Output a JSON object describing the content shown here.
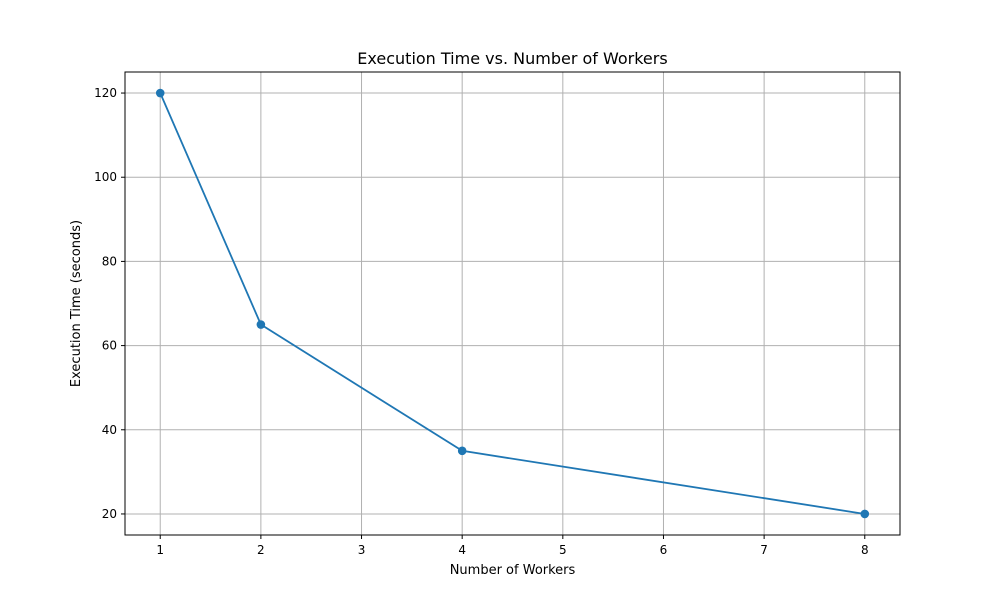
{
  "chart_data": {
    "type": "line",
    "title": "Execution Time vs. Number of Workers",
    "xlabel": "Number of Workers",
    "ylabel": "Execution Time (seconds)",
    "x": [
      1,
      2,
      4,
      8
    ],
    "series": [
      {
        "values": [
          120,
          65,
          35,
          20
        ],
        "color": "#1f77b4",
        "marker": "circle"
      }
    ],
    "xticks": [
      1,
      2,
      3,
      4,
      5,
      6,
      7,
      8
    ],
    "yticks": [
      20,
      40,
      60,
      80,
      100,
      120
    ],
    "xlim": [
      0.65,
      8.35
    ],
    "ylim": [
      15,
      125
    ],
    "grid": true
  }
}
